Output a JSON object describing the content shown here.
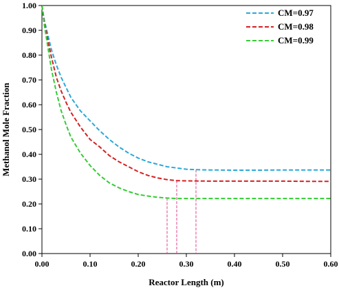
{
  "chart_data": {
    "type": "line",
    "title": "",
    "xlabel": "Reactor Length (m)",
    "ylabel": "Methanol Mole Fraction",
    "xlim": [
      0,
      0.6
    ],
    "ylim": [
      0,
      1.0
    ],
    "x_ticks": [
      "0.00",
      "0.10",
      "0.20",
      "0.30",
      "0.40",
      "0.50",
      "0.60"
    ],
    "y_ticks": [
      "0.00",
      "0.10",
      "0.20",
      "0.30",
      "0.40",
      "0.50",
      "0.60",
      "0.70",
      "0.80",
      "0.90",
      "1.00"
    ],
    "grid": false,
    "legend_position": "top-right",
    "line_style": "dashed",
    "series": [
      {
        "name": "CM=0.97",
        "color": "#29a8d8",
        "points": [
          [
            0,
            1.0
          ],
          [
            0.005,
            0.94
          ],
          [
            0.01,
            0.9
          ],
          [
            0.02,
            0.82
          ],
          [
            0.03,
            0.76
          ],
          [
            0.04,
            0.71
          ],
          [
            0.05,
            0.67
          ],
          [
            0.06,
            0.63
          ],
          [
            0.08,
            0.575
          ],
          [
            0.1,
            0.535
          ],
          [
            0.12,
            0.495
          ],
          [
            0.14,
            0.46
          ],
          [
            0.16,
            0.43
          ],
          [
            0.18,
            0.405
          ],
          [
            0.2,
            0.385
          ],
          [
            0.22,
            0.37
          ],
          [
            0.24,
            0.36
          ],
          [
            0.26,
            0.35
          ],
          [
            0.28,
            0.345
          ],
          [
            0.3,
            0.34
          ],
          [
            0.32,
            0.338
          ],
          [
            0.35,
            0.337
          ],
          [
            0.4,
            0.336
          ],
          [
            0.45,
            0.336
          ],
          [
            0.5,
            0.337
          ],
          [
            0.55,
            0.337
          ],
          [
            0.6,
            0.337
          ]
        ]
      },
      {
        "name": "CM=0.98",
        "color": "#d42020",
        "points": [
          [
            0,
            1.0
          ],
          [
            0.005,
            0.93
          ],
          [
            0.01,
            0.88
          ],
          [
            0.02,
            0.79
          ],
          [
            0.03,
            0.71
          ],
          [
            0.04,
            0.655
          ],
          [
            0.05,
            0.61
          ],
          [
            0.06,
            0.57
          ],
          [
            0.08,
            0.51
          ],
          [
            0.1,
            0.46
          ],
          [
            0.12,
            0.43
          ],
          [
            0.14,
            0.395
          ],
          [
            0.16,
            0.37
          ],
          [
            0.18,
            0.35
          ],
          [
            0.2,
            0.33
          ],
          [
            0.22,
            0.315
          ],
          [
            0.24,
            0.305
          ],
          [
            0.26,
            0.298
          ],
          [
            0.28,
            0.294
          ],
          [
            0.3,
            0.293
          ],
          [
            0.35,
            0.292
          ],
          [
            0.4,
            0.292
          ],
          [
            0.45,
            0.292
          ],
          [
            0.5,
            0.292
          ],
          [
            0.55,
            0.291
          ],
          [
            0.6,
            0.291
          ]
        ]
      },
      {
        "name": "CM=0.99",
        "color": "#33cc33",
        "points": [
          [
            0,
            1.0
          ],
          [
            0.005,
            0.92
          ],
          [
            0.01,
            0.86
          ],
          [
            0.02,
            0.74
          ],
          [
            0.03,
            0.65
          ],
          [
            0.04,
            0.575
          ],
          [
            0.05,
            0.52
          ],
          [
            0.06,
            0.47
          ],
          [
            0.08,
            0.405
          ],
          [
            0.1,
            0.355
          ],
          [
            0.12,
            0.315
          ],
          [
            0.14,
            0.285
          ],
          [
            0.16,
            0.265
          ],
          [
            0.18,
            0.25
          ],
          [
            0.2,
            0.238
          ],
          [
            0.22,
            0.232
          ],
          [
            0.24,
            0.227
          ],
          [
            0.26,
            0.224
          ],
          [
            0.28,
            0.222
          ],
          [
            0.3,
            0.222
          ],
          [
            0.35,
            0.222
          ],
          [
            0.4,
            0.222
          ],
          [
            0.45,
            0.222
          ],
          [
            0.5,
            0.222
          ],
          [
            0.55,
            0.222
          ],
          [
            0.6,
            0.222
          ]
        ]
      }
    ],
    "reference_lines": [
      {
        "color": "#e0408a",
        "x": 0.26,
        "y_top": 0.224
      },
      {
        "color": "#e0408a",
        "x": 0.28,
        "y_top": 0.294
      },
      {
        "color": "#e0408a",
        "x": 0.32,
        "y_top": 0.338
      }
    ]
  }
}
